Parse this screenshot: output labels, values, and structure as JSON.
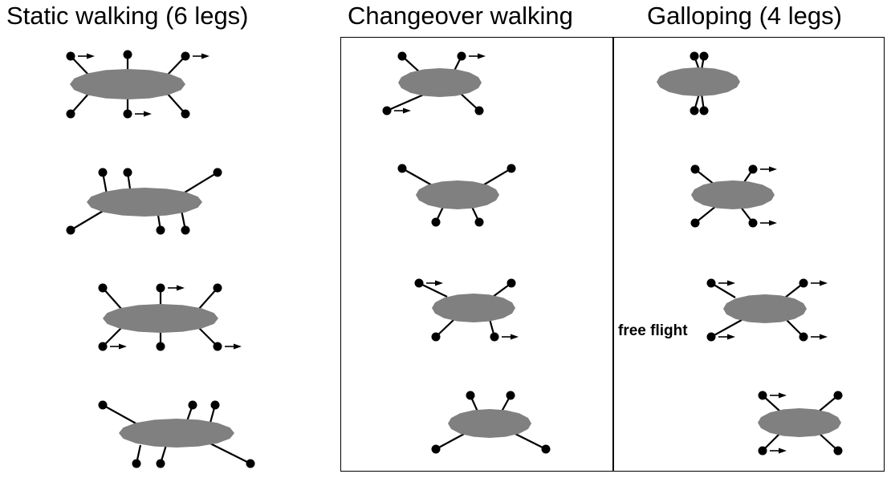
{
  "columns": [
    {
      "title": "Static walking (6 legs)"
    },
    {
      "title": "Changeover walking"
    },
    {
      "title": "Galloping (4 legs)"
    }
  ],
  "annotation": "free flight",
  "colors": {
    "body": "#808080",
    "leg": "#000000",
    "foot": "#000000",
    "text": "#000000",
    "border": "#000000"
  }
}
